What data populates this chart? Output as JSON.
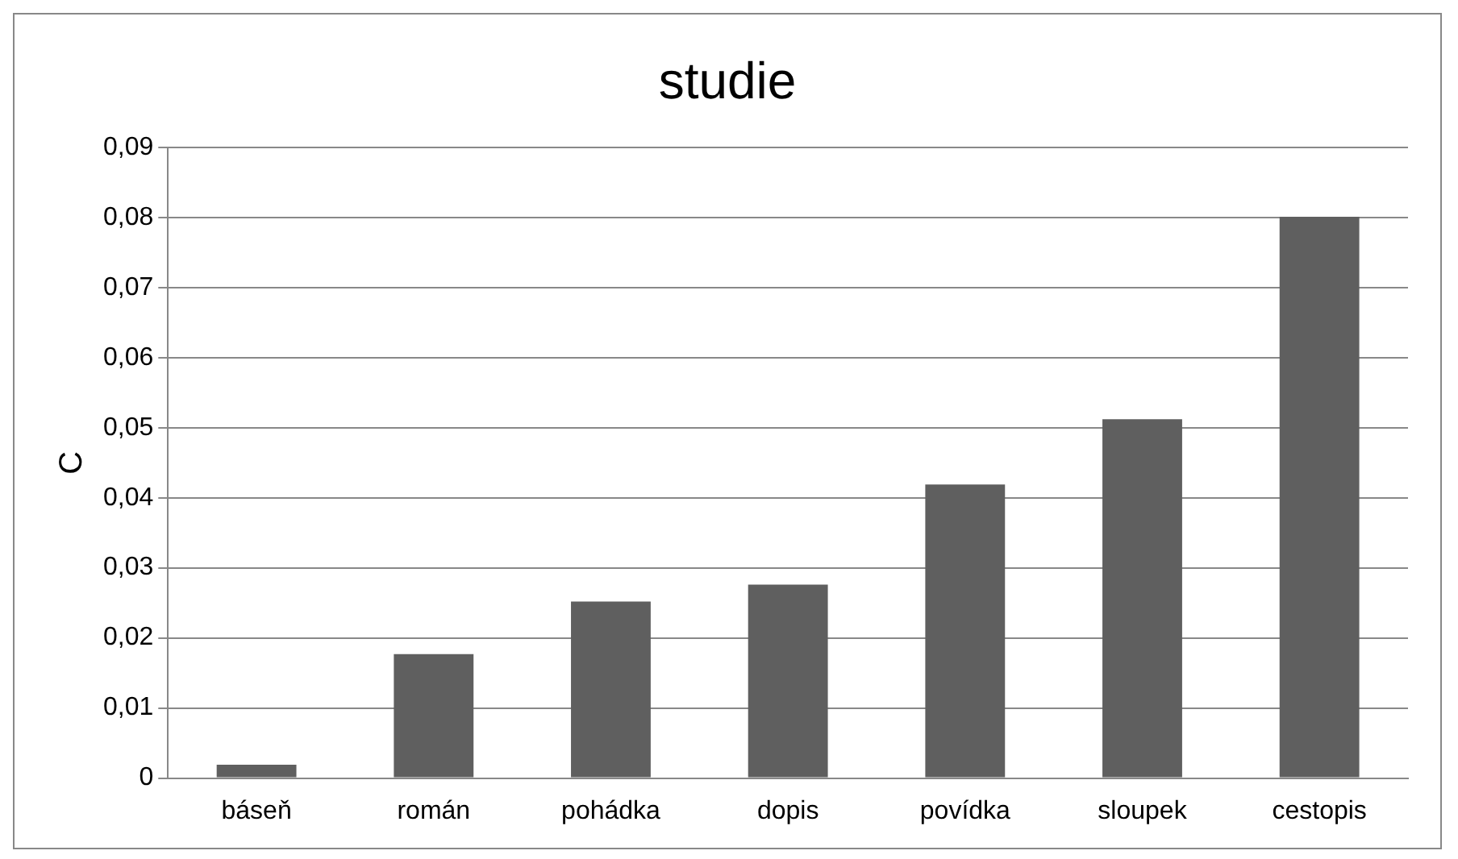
{
  "chart_data": {
    "type": "bar",
    "title": "studie",
    "ylabel": "C",
    "categories": [
      "báseň",
      "román",
      "pohádka",
      "dopis",
      "povídka",
      "sloupek",
      "cestopis"
    ],
    "values": [
      0.0019,
      0.0177,
      0.0252,
      0.0276,
      0.0419,
      0.0512,
      0.0801
    ],
    "color": "#5f5f5f",
    "ylim": [
      0,
      0.09
    ],
    "yticks": [
      {
        "value": 0,
        "label": "0"
      },
      {
        "value": 0.01,
        "label": "0,01"
      },
      {
        "value": 0.02,
        "label": "0,02"
      },
      {
        "value": 0.03,
        "label": "0,03"
      },
      {
        "value": 0.04,
        "label": "0,04"
      },
      {
        "value": 0.05,
        "label": "0,05"
      },
      {
        "value": 0.06,
        "label": "0,06"
      },
      {
        "value": 0.07,
        "label": "0,07"
      },
      {
        "value": 0.08,
        "label": "0,08"
      },
      {
        "value": 0.09,
        "label": "0,09"
      }
    ],
    "grid": "y",
    "legend": false
  }
}
